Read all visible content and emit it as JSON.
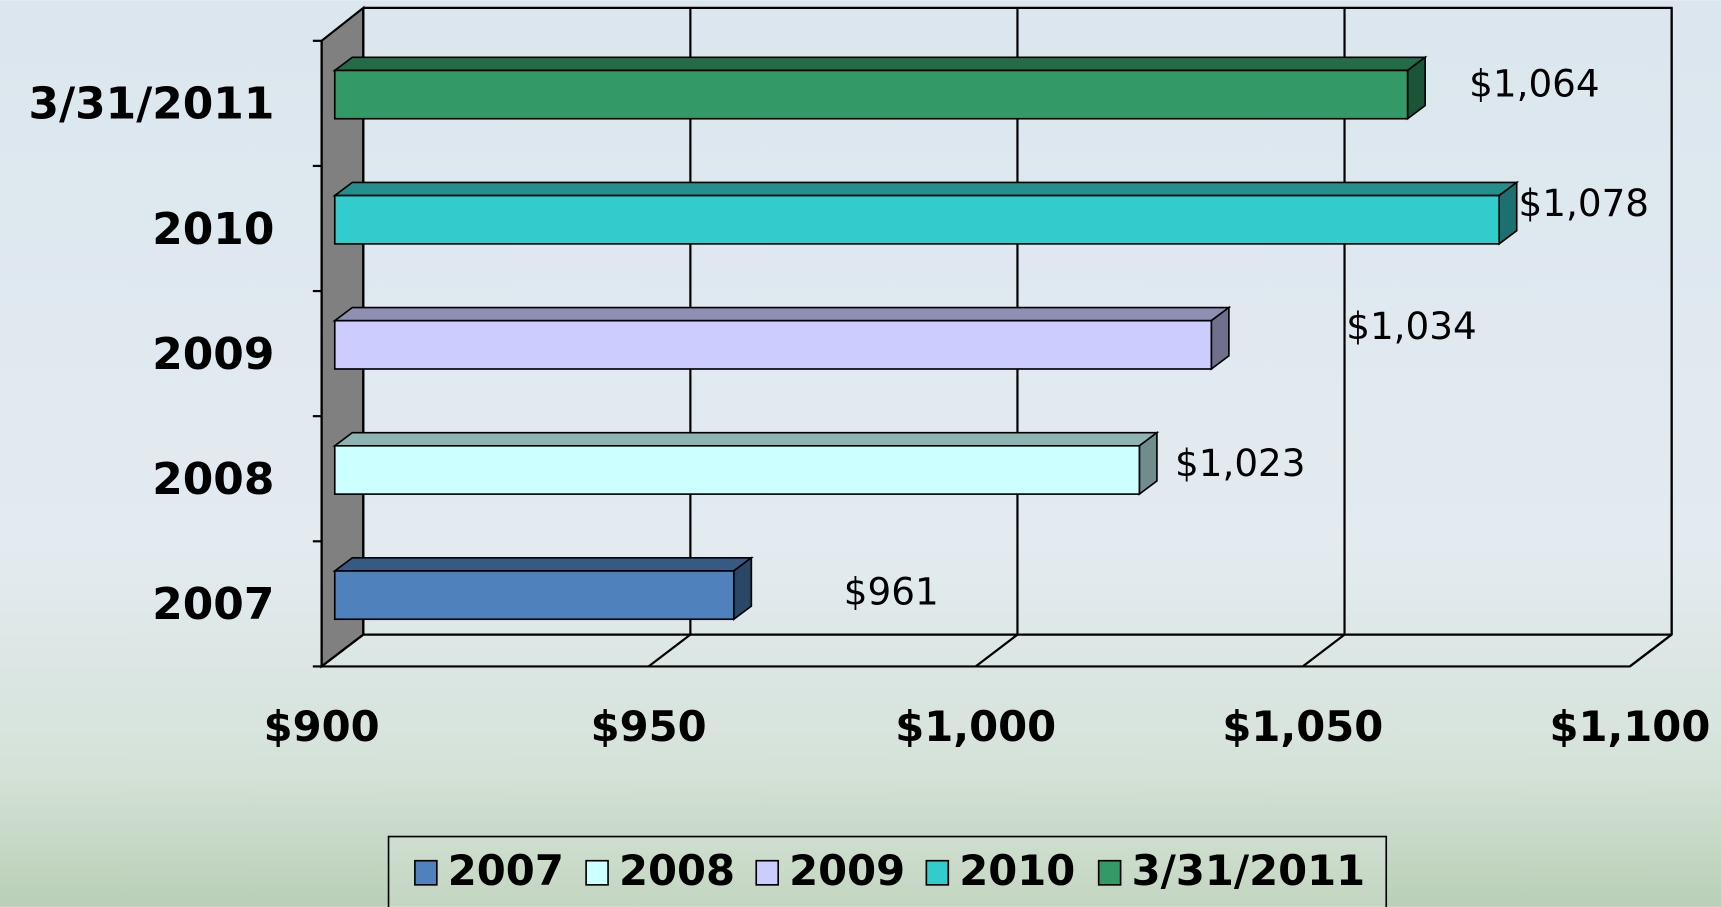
{
  "chart_data": {
    "type": "bar3d",
    "categories": [
      "2007",
      "2008",
      "2009",
      "2010",
      "3/31/2011"
    ],
    "values": [
      961,
      1023,
      1034,
      1078,
      1064
    ],
    "value_labels": [
      "$961",
      "$1,023",
      "$1,034",
      "$1,078",
      "$1,064"
    ],
    "colors": [
      "#4f81bd",
      "#ccffff",
      "#ccccff",
      "#33cccc",
      "#339966"
    ],
    "xlim": [
      900,
      1100
    ],
    "xticks": [
      {
        "value": 900,
        "label": "$900"
      },
      {
        "value": 950,
        "label": "$950"
      },
      {
        "value": 1000,
        "label": "$1,000"
      },
      {
        "value": 1050,
        "label": "$1,050"
      },
      {
        "value": 1100,
        "label": "$1,100"
      }
    ],
    "grid": true,
    "legend": "bottom"
  }
}
